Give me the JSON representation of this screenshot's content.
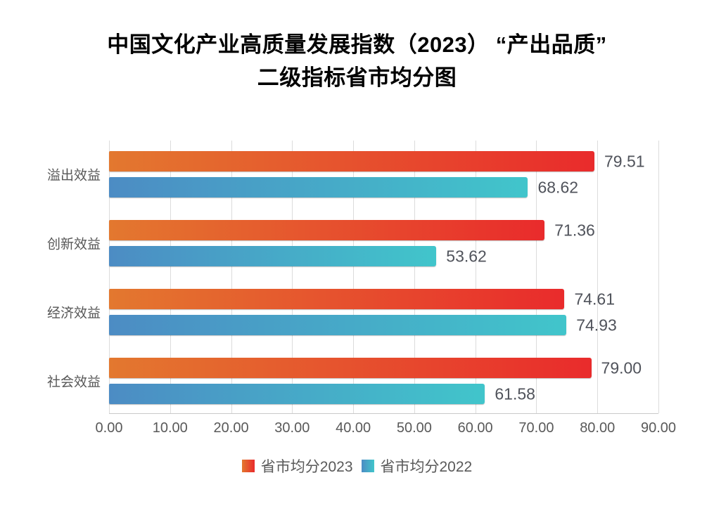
{
  "chart_data": {
    "type": "bar",
    "orientation": "horizontal",
    "title": "中国文化产业高质量发展指数（2023）“产出品质”二级指标省市均分图",
    "title_lines": [
      "中国文化产业高质量发展指数（2023） “产出品质”",
      "二级指标省市均分图"
    ],
    "categories": [
      "溢出效益",
      "创新效益",
      "经济效益",
      "社会效益"
    ],
    "series": [
      {
        "name": "省市均分2023",
        "values": [
          79.51,
          71.36,
          74.61,
          79.0
        ],
        "gradient": [
          "#E3782F",
          "#E92B2C"
        ]
      },
      {
        "name": "省市均分2022",
        "values": [
          68.62,
          53.62,
          74.93,
          61.58
        ],
        "gradient": [
          "#4C8CC4",
          "#41C5CB"
        ]
      }
    ],
    "value_labels": [
      [
        "79.51",
        "68.62"
      ],
      [
        "71.36",
        "53.62"
      ],
      [
        "74.61",
        "74.93"
      ],
      [
        "79.00",
        "61.58"
      ]
    ],
    "xlim": [
      0,
      90
    ],
    "x_ticks": [
      "0.00",
      "10.00",
      "20.00",
      "30.00",
      "40.00",
      "50.00",
      "60.00",
      "70.00",
      "80.00",
      "90.00"
    ],
    "grid": true,
    "legend_position": "bottom"
  },
  "colors": {
    "background": "#FFFFFF",
    "title_text": "#000000",
    "axis_text": "#595959",
    "category_text": "#575757",
    "value_text": "#50535B",
    "gridline": "#DCDCDC",
    "axis_line": "#C9C9C9",
    "series_2023_start": "#E3782F",
    "series_2023_end": "#E92B2C",
    "series_2022_start": "#4C8CC4",
    "series_2022_end": "#41C5CB"
  }
}
